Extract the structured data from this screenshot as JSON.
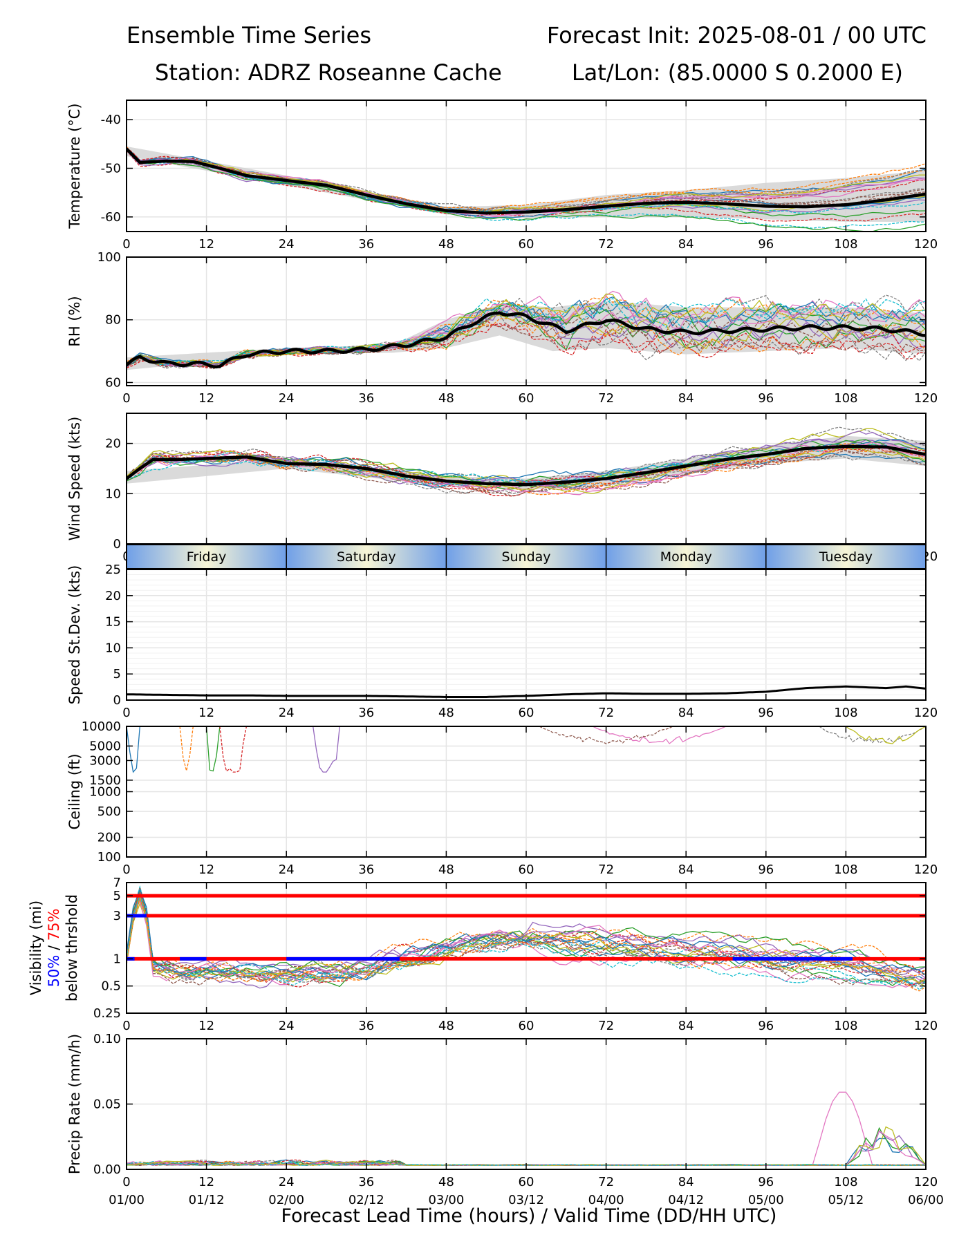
{
  "header": {
    "title_left": "Ensemble Time Series",
    "title_right": "Forecast Init: 2025-08-01 / 00 UTC",
    "station": "Station: ADRZ Roseanne Cache",
    "latlon": "Lat/Lon: (85.0000 S 0.2000 E)"
  },
  "x_axis": {
    "label": "Forecast Lead Time (hours) / Valid Time (DD/HH UTC)",
    "hour_ticks": [
      "0",
      "12",
      "24",
      "36",
      "48",
      "60",
      "72",
      "84",
      "96",
      "108",
      "120"
    ],
    "valid_ticks": [
      "01/00",
      "01/12",
      "02/00",
      "02/12",
      "03/00",
      "03/12",
      "04/00",
      "04/12",
      "05/00",
      "05/12",
      "06/00"
    ]
  },
  "day_band": {
    "days": [
      "Friday",
      "Saturday",
      "Sunday",
      "Monday",
      "Tuesday"
    ],
    "colors": {
      "edge": "#6f9fe8",
      "center": "#f7f5d6"
    }
  },
  "colors": {
    "mean": "#000000",
    "spread": "#d3d3d3",
    "threshold_75": "#ff0000",
    "threshold_50": "#0000ff",
    "members": [
      "#1f77b4",
      "#ff7f0e",
      "#2ca02c",
      "#d62728",
      "#9467bd",
      "#8c564b",
      "#e377c2",
      "#7f7f7f",
      "#bcbd22",
      "#17becf"
    ]
  },
  "chart_data": [
    {
      "type": "line",
      "ylabel": "Temperature (°C)",
      "ylim": [
        -63,
        -36
      ],
      "yticks": [
        "-40",
        "-50",
        "-60"
      ],
      "grid": true,
      "mean": {
        "x": [
          0,
          2,
          6,
          10,
          14,
          18,
          24,
          30,
          36,
          42,
          48,
          54,
          60,
          66,
          72,
          78,
          84,
          90,
          96,
          102,
          108,
          114,
          120
        ],
        "values": [
          -46,
          -48.8,
          -48.5,
          -48.6,
          -50,
          -51.5,
          -52.5,
          -53.5,
          -55.5,
          -57.3,
          -58.7,
          -59.2,
          -59,
          -58.5,
          -57.8,
          -57.2,
          -57,
          -57.3,
          -57.8,
          -57.9,
          -57.5,
          -56.5,
          -55.3
        ]
      },
      "spread": {
        "x": [
          0,
          24,
          48,
          60,
          72,
          84,
          96,
          108,
          120
        ],
        "upper": [
          -45.5,
          -51.5,
          -58,
          -57.5,
          -55.5,
          -54.5,
          -53,
          -52,
          -50.5
        ],
        "lower": [
          -47.5,
          -53.5,
          -59.5,
          -60.3,
          -60,
          -60,
          -60.5,
          -61,
          -61
        ]
      }
    },
    {
      "type": "line",
      "ylabel": "RH (%)",
      "ylim": [
        59,
        100
      ],
      "yticks": [
        "60",
        "80",
        "100"
      ],
      "grid": true,
      "mean": {
        "x": [
          0,
          2,
          6,
          10,
          14,
          18,
          24,
          30,
          36,
          42,
          48,
          52,
          56,
          60,
          66,
          72,
          78,
          84,
          90,
          96,
          102,
          108,
          114,
          120
        ],
        "values": [
          65.5,
          68,
          66,
          66,
          65.5,
          69,
          70,
          70,
          70.5,
          72,
          74.5,
          79,
          82.5,
          81,
          76.5,
          80,
          77,
          76,
          76.5,
          77,
          77.5,
          77.5,
          77,
          75.5
        ]
      },
      "spread": {
        "x": [
          0,
          24,
          40,
          48,
          56,
          64,
          72,
          84,
          96,
          108,
          120
        ],
        "upper": [
          68,
          71,
          72,
          80,
          85,
          84,
          86,
          84,
          84,
          84,
          82
        ],
        "lower": [
          64,
          69,
          69.5,
          71,
          75,
          70,
          71,
          69,
          70,
          71,
          69
        ]
      }
    },
    {
      "type": "line",
      "ylabel": "Wind Speed (kts)",
      "ylim": [
        0,
        26
      ],
      "yticks": [
        "0",
        "10",
        "20"
      ],
      "grid": true,
      "mean": {
        "x": [
          0,
          2,
          4,
          8,
          12,
          18,
          24,
          30,
          36,
          42,
          48,
          54,
          60,
          66,
          72,
          78,
          84,
          90,
          96,
          102,
          108,
          114,
          120
        ],
        "values": [
          13,
          15,
          16.8,
          16.8,
          17,
          17.3,
          16,
          15.8,
          15,
          13.5,
          12.5,
          12,
          11.8,
          12.3,
          13,
          14.2,
          15.5,
          16.8,
          17.8,
          19,
          19.4,
          19.3,
          17.8
        ]
      },
      "spread": {
        "x": [
          0,
          24,
          48,
          60,
          72,
          84,
          96,
          108,
          120
        ],
        "upper": [
          14.5,
          17,
          13.5,
          13,
          14.5,
          17,
          19.5,
          21.5,
          20.5
        ],
        "lower": [
          12,
          15,
          11.5,
          10.8,
          11.5,
          14,
          16,
          17,
          15.5
        ]
      }
    },
    {
      "type": "line",
      "ylabel": "Speed St.Dev. (kts)",
      "ylim": [
        0,
        25
      ],
      "yticks": [
        "0",
        "5",
        "10",
        "15",
        "20",
        "25"
      ],
      "grid": true,
      "mean": {
        "x": [
          0,
          6,
          12,
          18,
          24,
          30,
          36,
          42,
          48,
          54,
          60,
          66,
          72,
          78,
          84,
          90,
          96,
          102,
          108,
          114,
          117,
          120
        ],
        "values": [
          1.1,
          1,
          0.9,
          0.9,
          0.8,
          0.8,
          0.8,
          0.7,
          0.6,
          0.6,
          0.8,
          1.1,
          1.3,
          1.2,
          1.2,
          1.3,
          1.6,
          2.3,
          2.6,
          2.3,
          2.6,
          2.2
        ]
      }
    },
    {
      "type": "line",
      "ylabel": "Ceiling (ft)",
      "scale": "log",
      "ylim": [
        100,
        10000
      ],
      "yticks": [
        "100",
        "200",
        "500",
        "1000",
        "1500",
        "3000",
        "5000",
        "10000"
      ],
      "grid": true
    },
    {
      "type": "line",
      "ylabel": "Visibility (mi)",
      "ylabel_50": "50%",
      "ylabel_sep": " / ",
      "ylabel_75": "75%",
      "ylabel_sub": "below thrshold",
      "scale": "log",
      "ylim": [
        0.25,
        7
      ],
      "yticks": [
        "0.25",
        "0.5",
        "1",
        "3",
        "5",
        "7"
      ],
      "grid": true,
      "thresholds": [
        1,
        3,
        5
      ],
      "blue_segments": [
        [
          0,
          3,
          3
        ],
        [
          0,
          1.2,
          1
        ],
        [
          8,
          12,
          1
        ],
        [
          24,
          41,
          1
        ],
        [
          91,
          109,
          1
        ]
      ]
    },
    {
      "type": "line",
      "ylabel": "Precip Rate (mm/h)",
      "ylim": [
        0,
        0.1
      ],
      "yticks": [
        "0.00",
        "0.05",
        "0.10"
      ],
      "grid": true
    }
  ]
}
